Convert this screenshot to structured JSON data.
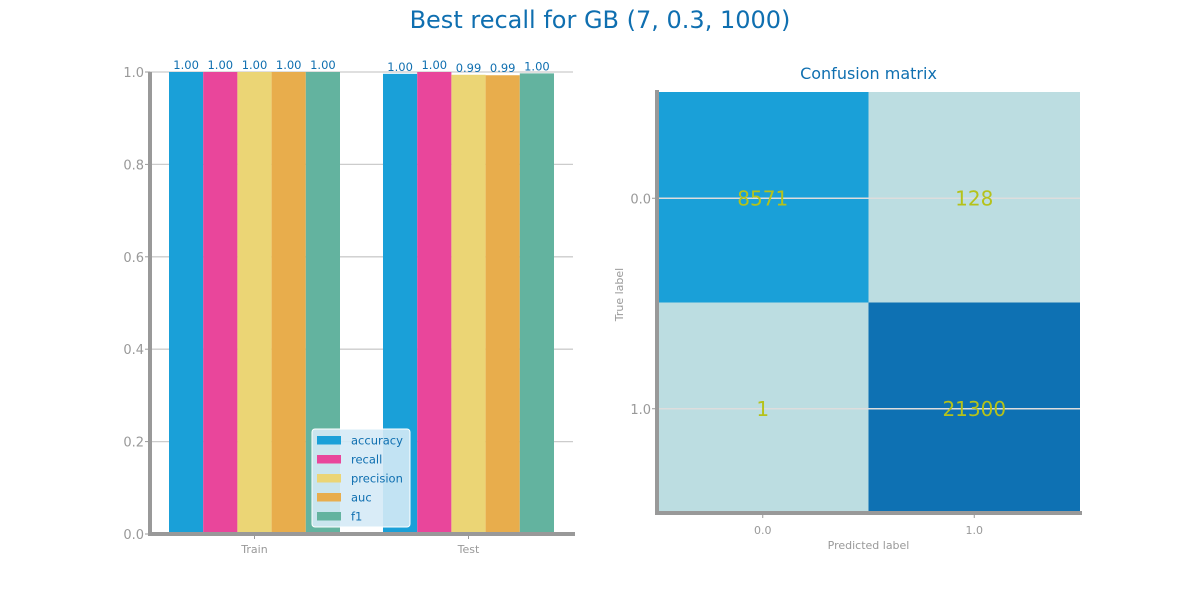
{
  "suptitle": "Best recall for GB (7, 0.3, 1000)",
  "colors": {
    "accuracy": "#1aa0d8",
    "recall": "#e9469b",
    "precision": "#ebd575",
    "auc": "#e8ad4c",
    "f1": "#63b39f",
    "axis": "#999999",
    "grid": "#cccccc",
    "title": "#0f6fb0",
    "cm_text": "#b5c21a",
    "cm_high": "#1aa0d8",
    "cm_low": "#bcdde1",
    "cm_max": "#0e71b3",
    "legend_bg": "#d5eaf6"
  },
  "chart_data": [
    {
      "type": "bar",
      "categories": [
        "Train",
        "Test"
      ],
      "series": [
        {
          "name": "accuracy",
          "values": [
            1.0,
            0.996
          ]
        },
        {
          "name": "recall",
          "values": [
            1.0,
            1.0
          ]
        },
        {
          "name": "precision",
          "values": [
            1.0,
            0.994
          ]
        },
        {
          "name": "auc",
          "values": [
            1.0,
            0.993
          ]
        },
        {
          "name": "f1",
          "values": [
            1.0,
            0.997
          ]
        }
      ],
      "labels": [
        [
          "1.00",
          "1.00",
          "1.00",
          "1.00",
          "1.00"
        ],
        [
          "1.00",
          "1.00",
          "0.99",
          "0.99",
          "1.00"
        ]
      ],
      "ylim": [
        0,
        1.0
      ],
      "yticks": [
        "0.0",
        "0.2",
        "0.4",
        "0.6",
        "0.8",
        "1.0"
      ],
      "grid": true,
      "legend_placement": "lower-right"
    },
    {
      "type": "heatmap",
      "title": "Confusion matrix",
      "xlabel": "Predicted label",
      "ylabel": "True label",
      "x_ticks": [
        "0.0",
        "1.0"
      ],
      "y_ticks": [
        "0.0",
        "1.0"
      ],
      "matrix": [
        [
          8571,
          128
        ],
        [
          1,
          21300
        ]
      ],
      "cell_labels": [
        [
          "8571",
          "128"
        ],
        [
          "1",
          "21300"
        ]
      ]
    }
  ]
}
